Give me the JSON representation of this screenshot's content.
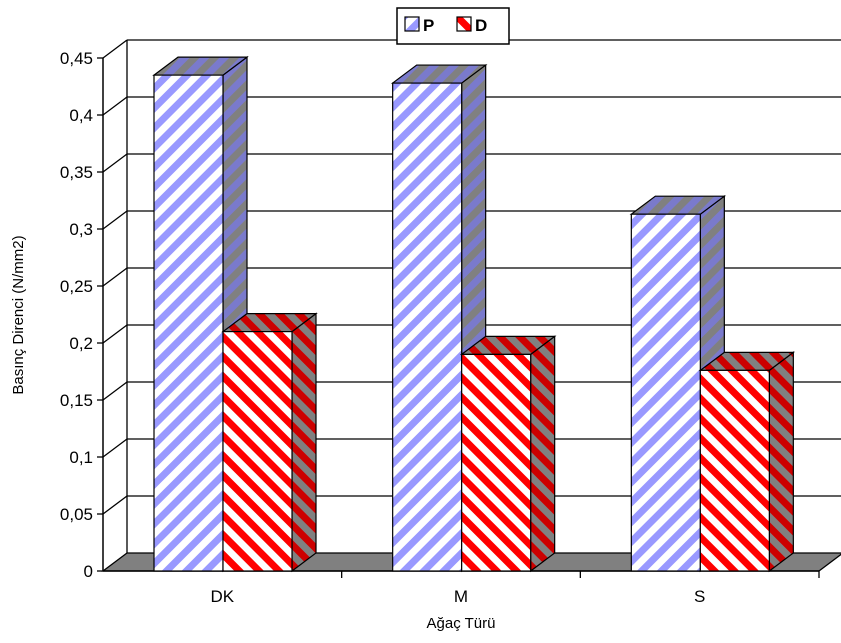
{
  "chart_data": {
    "type": "bar",
    "categories": [
      "DK",
      "M",
      "S"
    ],
    "series": [
      {
        "name": "P",
        "values": [
          0.435,
          0.428,
          0.313
        ],
        "color": "#9999ff",
        "pattern": "light-upward-diagonal"
      },
      {
        "name": "D",
        "values": [
          0.21,
          0.19,
          0.176
        ],
        "color": "#ff0000",
        "pattern": "wide-downward-diagonal"
      }
    ],
    "xlabel": "Ağaç Türü",
    "ylabel": "Basınç Direnci (N/mm2)",
    "ylim": [
      0,
      0.45
    ],
    "yticks": [
      0,
      0.05,
      0.1,
      0.15,
      0.2,
      0.25,
      0.3,
      0.35,
      0.4,
      0.45
    ],
    "ytick_labels": [
      "0",
      "0,05",
      "0,1",
      "0,15",
      "0,2",
      "0,25",
      "0,3",
      "0,35",
      "0,4",
      "0,45"
    ],
    "grid": true,
    "legend_position": "top-center",
    "style": "3d-clustered-column"
  }
}
